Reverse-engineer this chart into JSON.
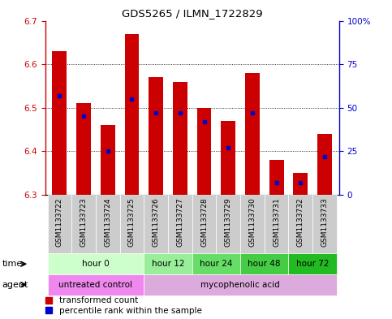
{
  "title": "GDS5265 / ILMN_1722829",
  "samples": [
    "GSM1133722",
    "GSM1133723",
    "GSM1133724",
    "GSM1133725",
    "GSM1133726",
    "GSM1133727",
    "GSM1133728",
    "GSM1133729",
    "GSM1133730",
    "GSM1133731",
    "GSM1133732",
    "GSM1133733"
  ],
  "bar_bottoms": [
    6.3,
    6.3,
    6.3,
    6.3,
    6.3,
    6.3,
    6.3,
    6.3,
    6.3,
    6.3,
    6.3,
    6.3
  ],
  "bar_tops": [
    6.63,
    6.51,
    6.46,
    6.67,
    6.57,
    6.56,
    6.5,
    6.47,
    6.58,
    6.38,
    6.35,
    6.44
  ],
  "percentile_vals": [
    57,
    45,
    25,
    55,
    47,
    47,
    42,
    27,
    47,
    7,
    7,
    22
  ],
  "ylim": [
    6.3,
    6.7
  ],
  "y_ticks": [
    6.3,
    6.4,
    6.5,
    6.6,
    6.7
  ],
  "right_yticks": [
    0,
    25,
    50,
    75,
    100
  ],
  "bar_color": "#cc0000",
  "blue_color": "#0000cc",
  "bar_width": 0.6,
  "time_groups": [
    {
      "label": "hour 0",
      "start": 0,
      "end": 4,
      "color": "#ccffcc"
    },
    {
      "label": "hour 12",
      "start": 4,
      "end": 6,
      "color": "#99ee99"
    },
    {
      "label": "hour 24",
      "start": 6,
      "end": 8,
      "color": "#66dd66"
    },
    {
      "label": "hour 48",
      "start": 8,
      "end": 10,
      "color": "#44cc44"
    },
    {
      "label": "hour 72",
      "start": 10,
      "end": 12,
      "color": "#22bb22"
    }
  ],
  "agent_groups": [
    {
      "label": "untreated control",
      "start": 0,
      "end": 4,
      "color": "#ee88ee"
    },
    {
      "label": "mycophenolic acid",
      "start": 4,
      "end": 12,
      "color": "#ddaadd"
    }
  ],
  "bg_color": "#ffffff",
  "left_axis_color": "#cc0000",
  "right_axis_color": "#0000cc",
  "legend_red_label": "transformed count",
  "legend_blue_label": "percentile rank within the sample",
  "xticklabel_size": 6.5,
  "yticklabel_size": 7.5,
  "grid_yticks": [
    6.4,
    6.5,
    6.6
  ]
}
